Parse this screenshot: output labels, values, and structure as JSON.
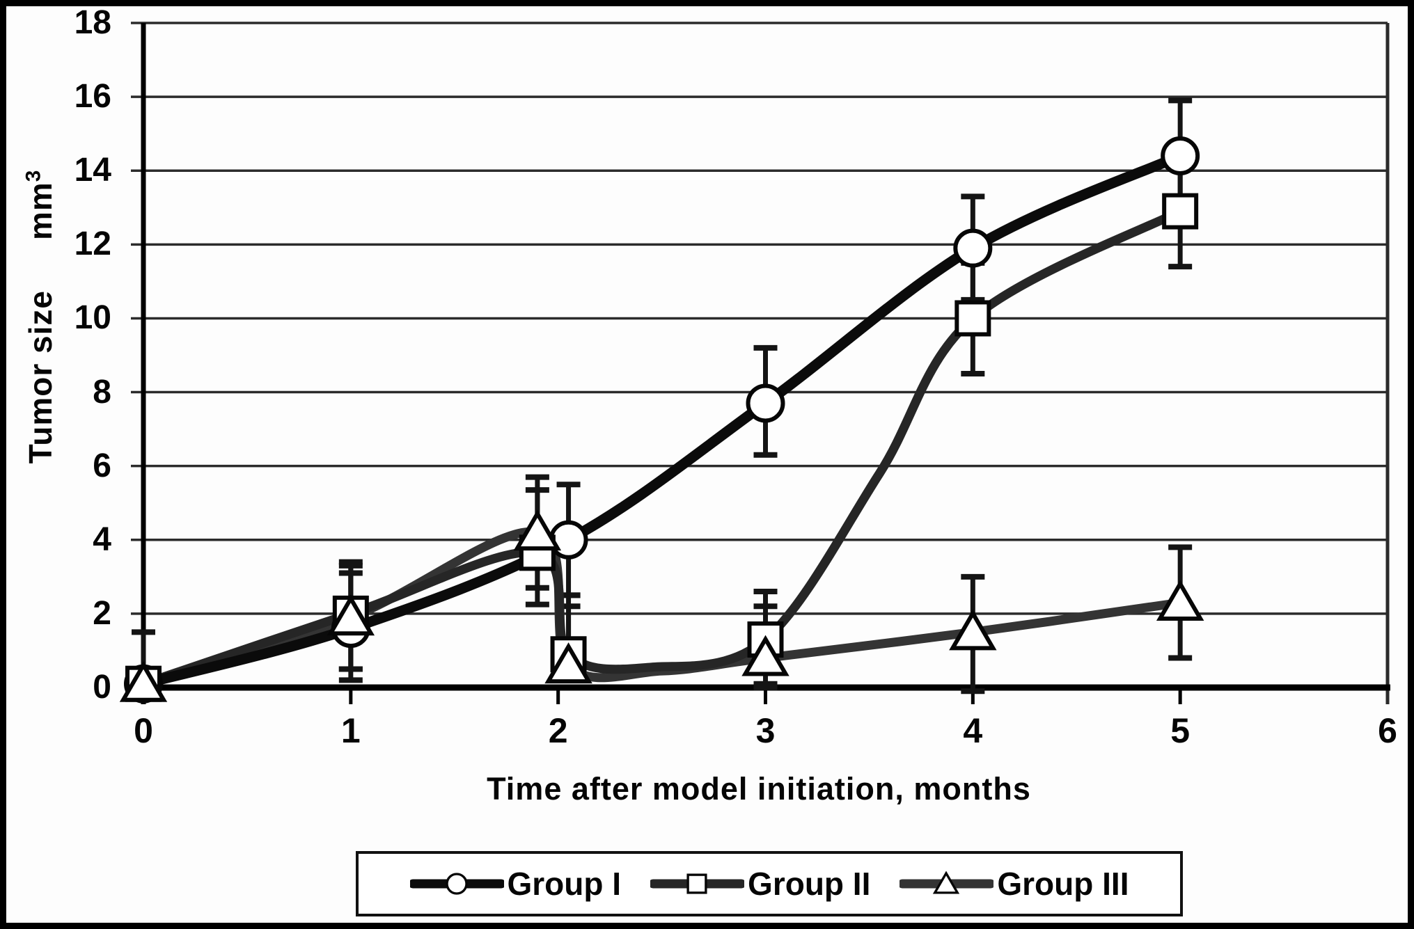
{
  "figure": {
    "background": "#fdfdfd",
    "frame_color": "#000000"
  },
  "chart_data": {
    "type": "line",
    "title": "",
    "xlabel": "Time after model initiation, months",
    "ylabel": "Tumor size",
    "y_unit": "mm",
    "y_unit_sup": "3",
    "xlim": [
      0,
      6
    ],
    "ylim": [
      0,
      18
    ],
    "x_ticks": [
      0,
      1,
      2,
      3,
      4,
      5,
      6
    ],
    "y_ticks": [
      0,
      2,
      4,
      6,
      8,
      10,
      12,
      14,
      16,
      18
    ],
    "grid": "horizontal gridlines every 2 units",
    "legend_position": "bottom-center",
    "colors": {
      "grid": "#2b2b2b",
      "axis": "#000000",
      "error_bar": "#141414",
      "marker_fill": "#ffffff"
    },
    "series": [
      {
        "name": "Group I",
        "marker": "circle",
        "color": "#0b0b0b",
        "line_width": 15,
        "points": [
          {
            "x": 0,
            "y": 0.1,
            "err_up": 1.4,
            "err_down": 0,
            "marker": true
          },
          {
            "x": 1,
            "y": 1.6,
            "err_up": 1.5,
            "err_down": 1.4,
            "marker": true
          },
          {
            "x": 2.05,
            "y": 4.0,
            "err_up": 1.5,
            "err_down": 1.5,
            "marker": true
          },
          {
            "x": 3,
            "y": 7.7,
            "err_up": 1.5,
            "err_down": 1.4,
            "marker": true
          },
          {
            "x": 4,
            "y": 11.9,
            "err_up": 1.4,
            "err_down": 1.4,
            "marker": true
          },
          {
            "x": 5,
            "y": 14.4,
            "err_up": 1.5,
            "err_down": 1.5,
            "marker": true
          }
        ]
      },
      {
        "name": "Group II",
        "marker": "square",
        "color": "#262626",
        "line_width": 13,
        "points": [
          {
            "x": 0,
            "y": 0.1,
            "err_up": 0,
            "err_down": 0,
            "marker": true
          },
          {
            "x": 1,
            "y": 2.0,
            "err_up": 1.4,
            "err_down": 1.5,
            "marker": true
          },
          {
            "x": 1.9,
            "y": 3.65,
            "err_up": 1.7,
            "err_down": 1.4,
            "marker": true
          },
          {
            "x": 2.05,
            "y": 0.9,
            "err_up": 1.6,
            "err_down": 0.7,
            "marker": true
          },
          {
            "x": 2.45,
            "y": 0.55,
            "err_up": 0,
            "err_down": 0,
            "marker": false
          },
          {
            "x": 3,
            "y": 1.3,
            "err_up": 1.3,
            "err_down": 1.2,
            "marker": true
          },
          {
            "x": 3.55,
            "y": 5.8,
            "err_up": 0,
            "err_down": 0,
            "marker": false
          },
          {
            "x": 4,
            "y": 10.0,
            "err_up": 1.5,
            "err_down": 1.5,
            "marker": true
          },
          {
            "x": 5,
            "y": 12.9,
            "err_up": 1.5,
            "err_down": 1.5,
            "marker": true
          }
        ]
      },
      {
        "name": "Group III",
        "marker": "triangle",
        "color": "#343434",
        "line_width": 13,
        "points": [
          {
            "x": 0,
            "y": 0.1,
            "err_up": 0,
            "err_down": 0,
            "marker": true
          },
          {
            "x": 1,
            "y": 1.9,
            "err_up": 1.4,
            "err_down": 1.4,
            "marker": true
          },
          {
            "x": 1.9,
            "y": 4.2,
            "err_up": 1.5,
            "err_down": 1.5,
            "marker": true
          },
          {
            "x": 2.05,
            "y": 0.6,
            "err_up": 1.6,
            "err_down": 0.4,
            "marker": true
          },
          {
            "x": 2.5,
            "y": 0.45,
            "err_up": 0,
            "err_down": 0,
            "marker": false
          },
          {
            "x": 3,
            "y": 0.8,
            "err_up": 1.4,
            "err_down": 0.8,
            "marker": true
          },
          {
            "x": 4,
            "y": 1.5,
            "err_up": 1.5,
            "err_down": 1.6,
            "marker": true
          },
          {
            "x": 5,
            "y": 2.3,
            "err_up": 1.5,
            "err_down": 1.5,
            "marker": true
          }
        ]
      }
    ]
  }
}
